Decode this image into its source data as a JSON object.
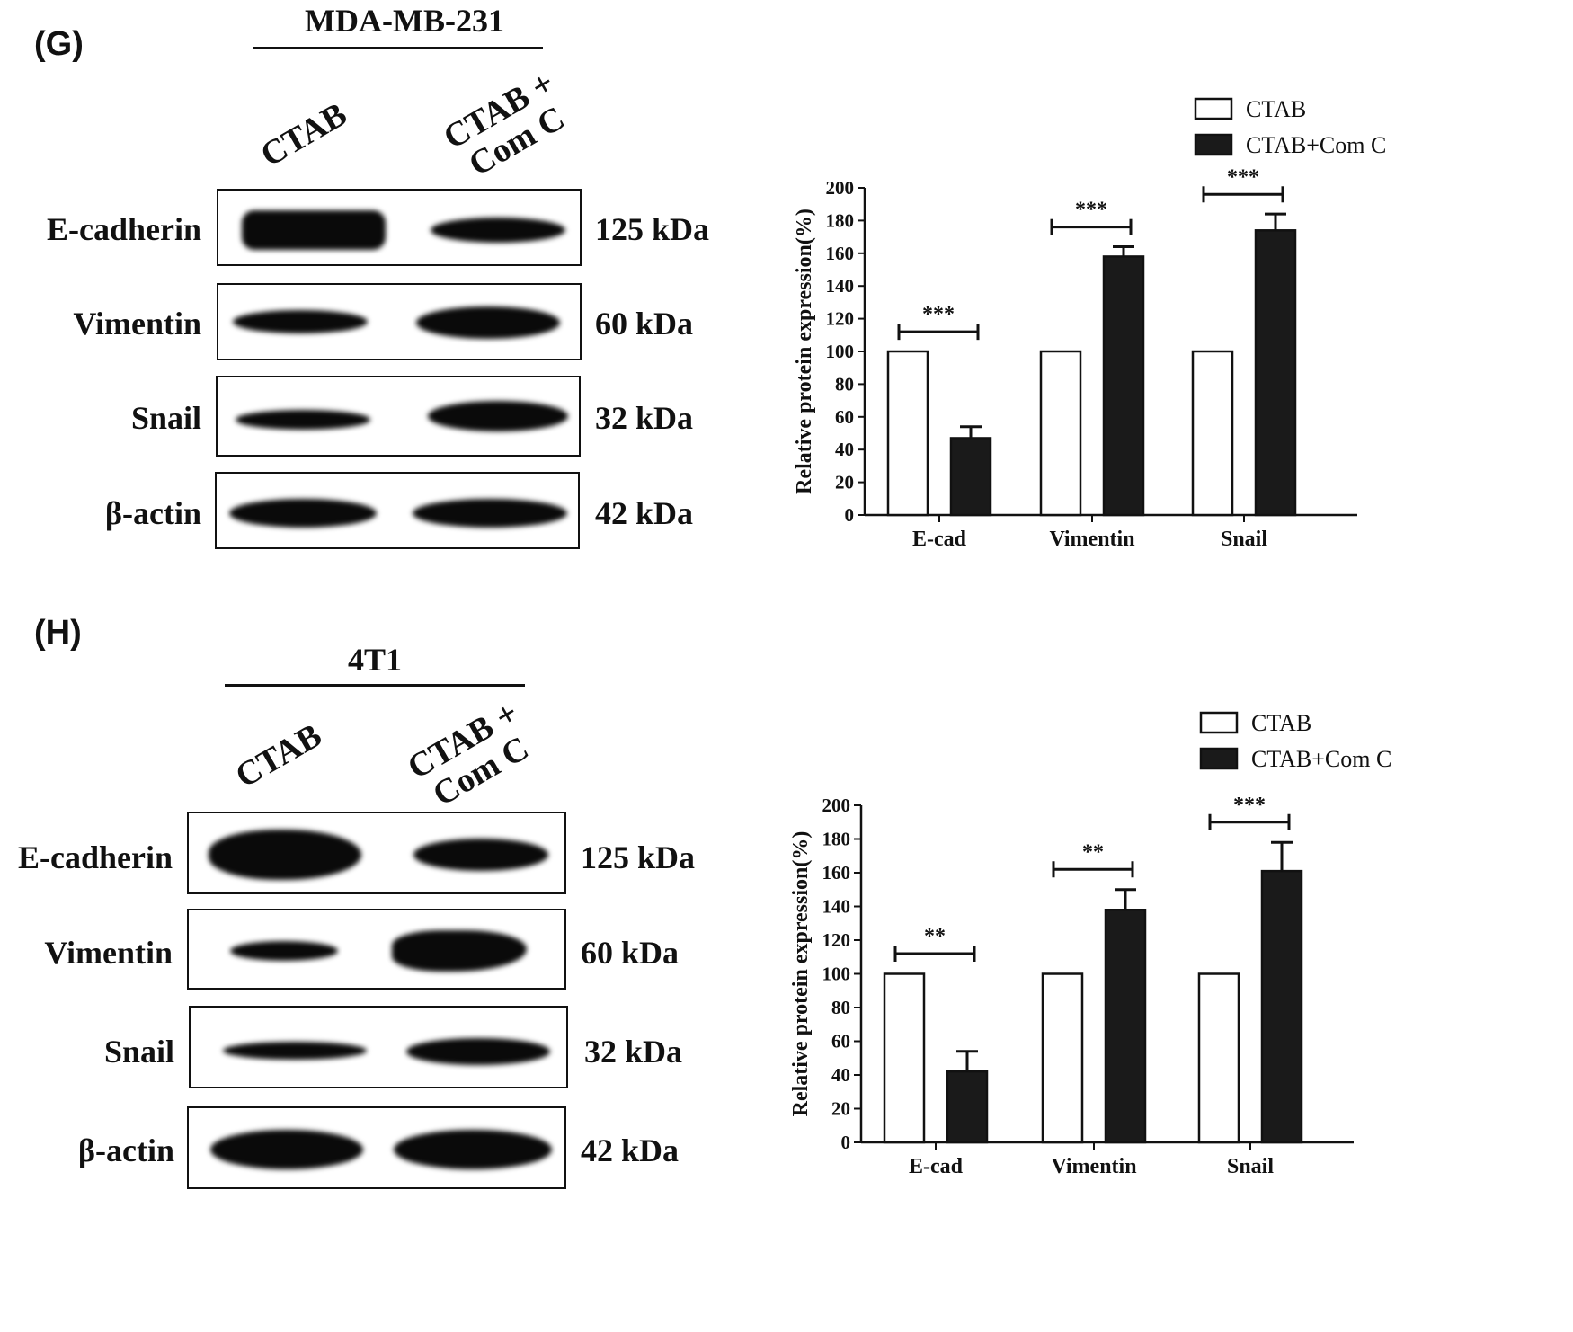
{
  "panels": [
    {
      "label": "(G)",
      "cell_line": "MDA-MB-231",
      "lanes": [
        "CTAB",
        "CTAB +\nCom C"
      ],
      "blots": [
        {
          "protein": "E-cadherin",
          "size": "125 kDa"
        },
        {
          "protein": "Vimentin",
          "size": "60 kDa"
        },
        {
          "protein": "Snail",
          "size": "32 kDa"
        },
        {
          "protein": "β-actin",
          "size": "42 kDa"
        }
      ]
    },
    {
      "label": "(H)",
      "cell_line": "4T1",
      "lanes": [
        "CTAB",
        "CTAB +\nCom C"
      ],
      "blots": [
        {
          "protein": "E-cadherin",
          "size": "125 kDa"
        },
        {
          "protein": "Vimentin",
          "size": "60 kDa"
        },
        {
          "protein": "Snail",
          "size": "32 kDa"
        },
        {
          "protein": "β-actin",
          "size": "42 kDa"
        }
      ]
    }
  ],
  "chart_data": [
    {
      "type": "bar",
      "categories": [
        "E-cad",
        "Vimentin",
        "Snail"
      ],
      "series": [
        {
          "name": "CTAB",
          "values": [
            100,
            100,
            100
          ],
          "errors": [
            0,
            0,
            0
          ],
          "color": "#ffffff"
        },
        {
          "name": "CTAB+Com C",
          "values": [
            47,
            158,
            174
          ],
          "errors": [
            7,
            6,
            10
          ],
          "color": "#1a1a1a"
        }
      ],
      "significance": [
        "***",
        "***",
        "***"
      ],
      "ylabel": "Relative protein expression(%)",
      "ylim": [
        0,
        200
      ],
      "yticks": [
        0,
        20,
        40,
        60,
        80,
        100,
        120,
        140,
        160,
        180,
        200
      ],
      "legend": "top-right"
    },
    {
      "type": "bar",
      "categories": [
        "E-cad",
        "Vimentin",
        "Snail"
      ],
      "series": [
        {
          "name": "CTAB",
          "values": [
            100,
            100,
            100
          ],
          "errors": [
            0,
            0,
            0
          ],
          "color": "#ffffff"
        },
        {
          "name": "CTAB+Com C",
          "values": [
            42,
            138,
            161
          ],
          "errors": [
            12,
            12,
            17
          ],
          "color": "#1a1a1a"
        }
      ],
      "significance": [
        "**",
        "**",
        "***"
      ],
      "ylabel": "Relative protein expression(%)",
      "ylim": [
        0,
        200
      ],
      "yticks": [
        0,
        20,
        40,
        60,
        80,
        100,
        120,
        140,
        160,
        180,
        200
      ],
      "legend": "top-right"
    }
  ]
}
